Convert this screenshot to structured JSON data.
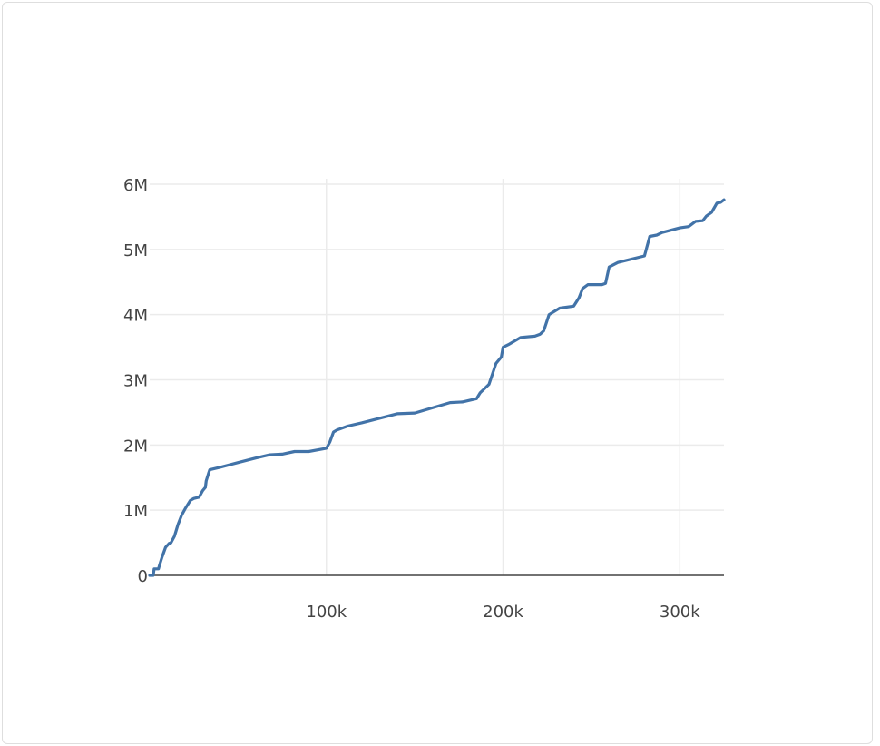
{
  "chart_data": {
    "type": "line",
    "title": "",
    "xlabel": "",
    "ylabel": "",
    "xlim": [
      0,
      325000
    ],
    "ylim": [
      0,
      6000000
    ],
    "x_ticks": [
      {
        "value": 100000,
        "label": "100k"
      },
      {
        "value": 200000,
        "label": "200k"
      },
      {
        "value": 300000,
        "label": "300k"
      }
    ],
    "y_ticks": [
      {
        "value": 0,
        "label": "0"
      },
      {
        "value": 1000000,
        "label": "1M"
      },
      {
        "value": 2000000,
        "label": "2M"
      },
      {
        "value": 3000000,
        "label": "3M"
      },
      {
        "value": 4000000,
        "label": "4M"
      },
      {
        "value": 5000000,
        "label": "5M"
      },
      {
        "value": 6000000,
        "label": "6M"
      }
    ],
    "grid": true,
    "series": [
      {
        "color": "#4273a8",
        "x": [
          0,
          2000,
          2500,
          5000,
          5500,
          7000,
          9000,
          11000,
          12000,
          14000,
          16000,
          18000,
          20000,
          23000,
          25000,
          28000,
          30000,
          31500,
          32000,
          33500,
          34000,
          40000,
          50000,
          60000,
          68000,
          75000,
          82000,
          90000,
          100000,
          102000,
          104000,
          106000,
          112000,
          120000,
          140000,
          150000,
          170000,
          177000,
          185000,
          187000,
          192000,
          196000,
          199000,
          200000,
          203000,
          210000,
          218000,
          221000,
          223000,
          226000,
          229000,
          232000,
          240000,
          243000,
          245000,
          248000,
          256000,
          258000,
          260000,
          265000,
          280000,
          283000,
          287000,
          290000,
          300000,
          305000,
          309000,
          313000,
          315000,
          318000,
          321000,
          323000,
          325000
        ],
        "y": [
          0,
          0,
          100000,
          100000,
          150000,
          280000,
          430000,
          490000,
          500000,
          600000,
          780000,
          920000,
          1020000,
          1150000,
          1180000,
          1200000,
          1300000,
          1350000,
          1450000,
          1580000,
          1620000,
          1660000,
          1730000,
          1800000,
          1850000,
          1860000,
          1900000,
          1900000,
          1950000,
          2050000,
          2200000,
          2230000,
          2290000,
          2340000,
          2480000,
          2490000,
          2650000,
          2660000,
          2710000,
          2800000,
          2930000,
          3250000,
          3350000,
          3500000,
          3540000,
          3650000,
          3670000,
          3700000,
          3750000,
          4000000,
          4050000,
          4100000,
          4130000,
          4260000,
          4400000,
          4460000,
          4460000,
          4480000,
          4730000,
          4800000,
          4900000,
          5200000,
          5220000,
          5260000,
          5330000,
          5350000,
          5430000,
          5440000,
          5510000,
          5570000,
          5710000,
          5720000,
          5760000
        ]
      }
    ]
  }
}
